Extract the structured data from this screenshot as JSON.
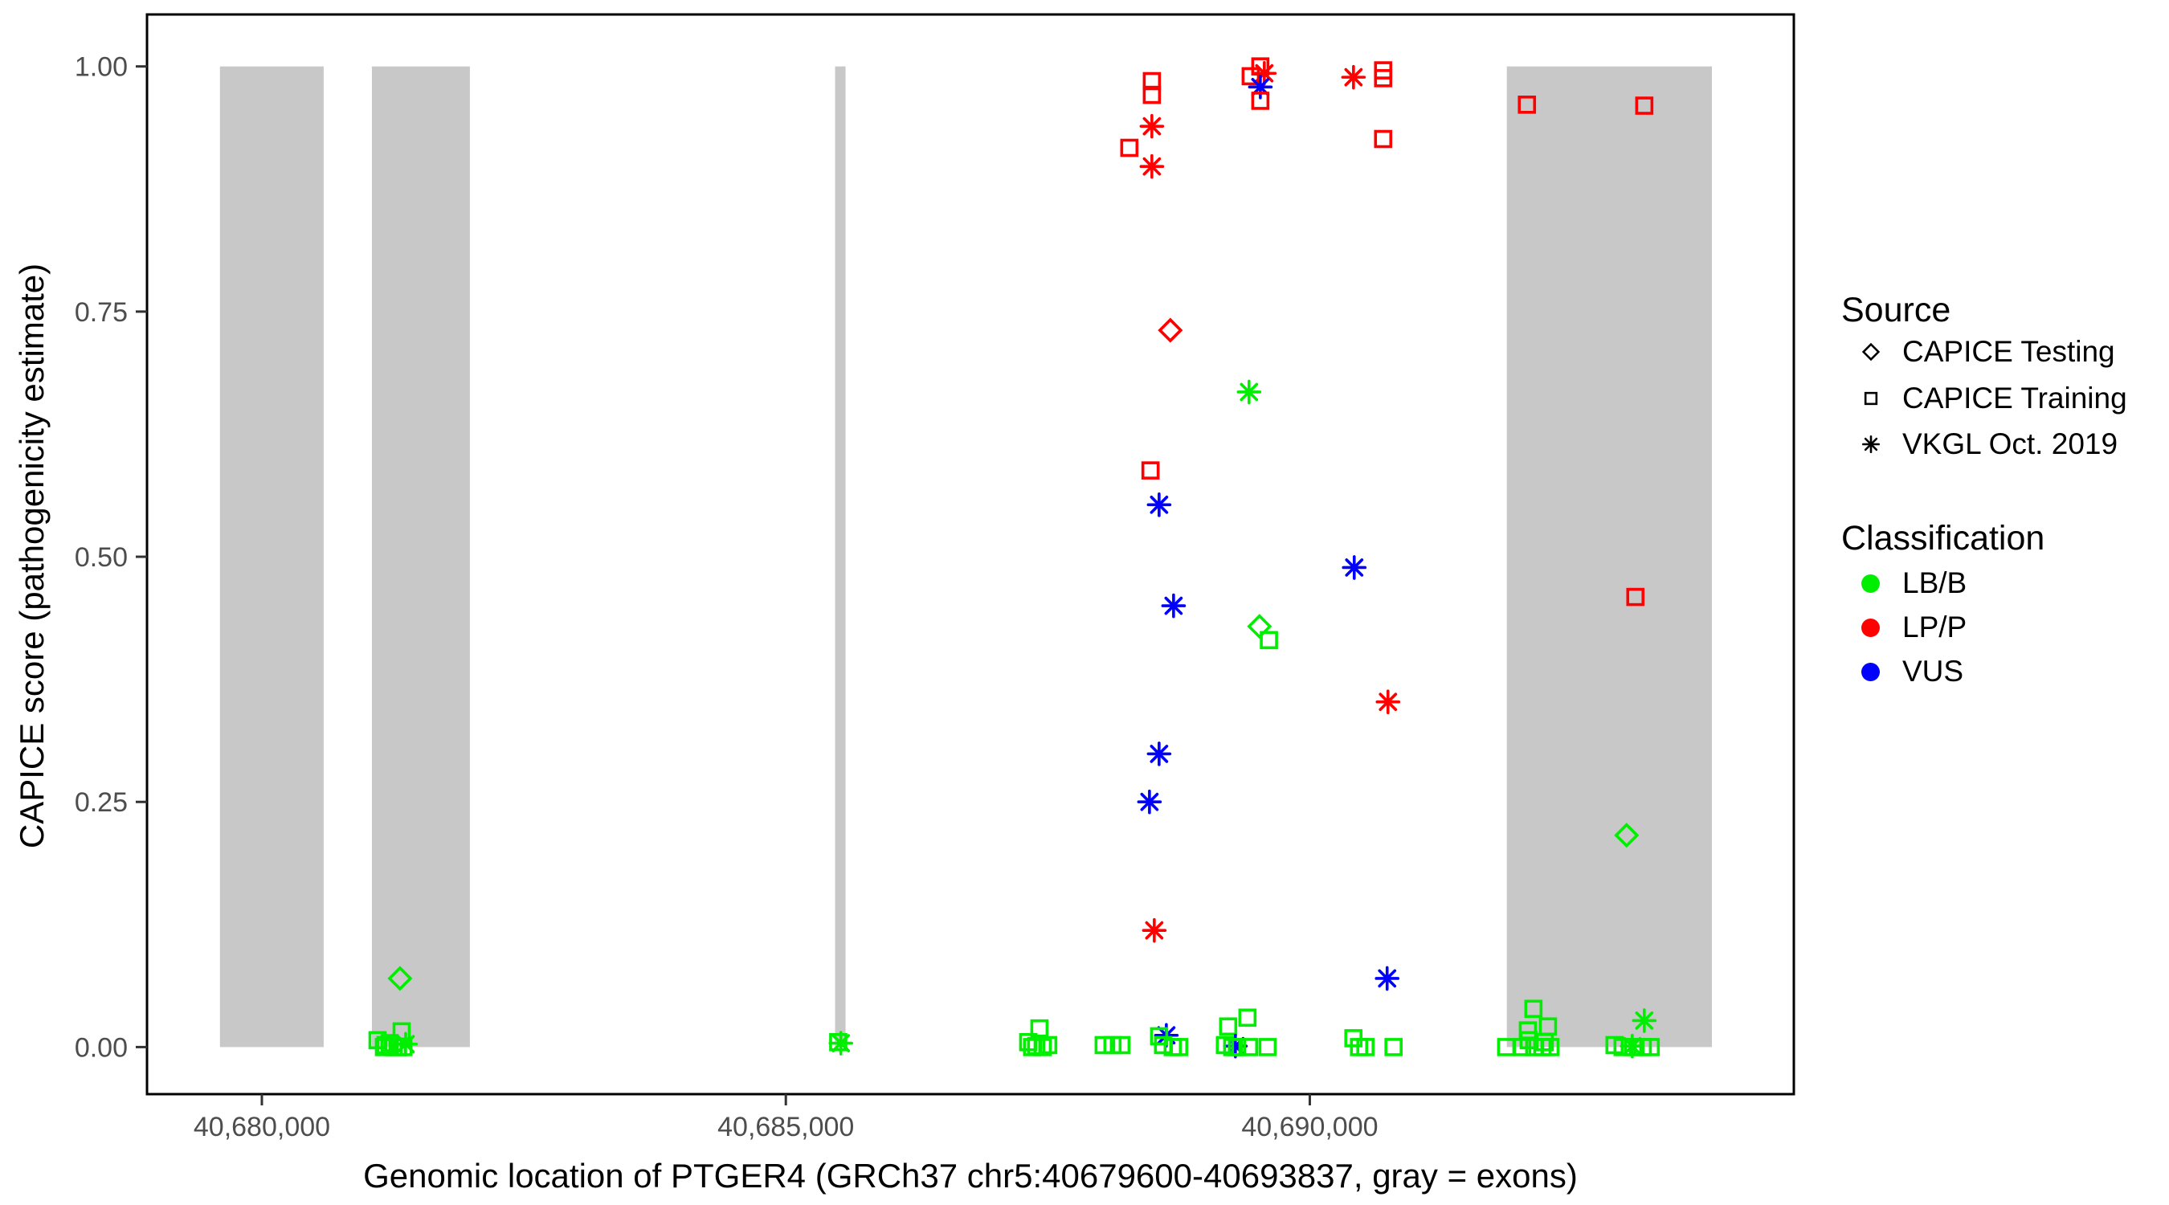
{
  "chart_data": {
    "type": "scatter",
    "title": "",
    "xlabel": "Genomic location of PTGER4 (GRCh37 chr5:40679600-40693837, gray = exons)",
    "ylabel": "CAPICE score (pathogenicity estimate)",
    "gene": "PTGER4",
    "genome_build": "GRCh37",
    "chromosome_region": "chr5:40679600-40693837",
    "x_ticks": [
      {
        "value": 40680000,
        "label": "40,680,000"
      },
      {
        "value": 40685000,
        "label": "40,685,000"
      },
      {
        "value": 40690000,
        "label": "40,690,000"
      }
    ],
    "y_ticks": [
      {
        "value": 0.0,
        "label": "0.00"
      },
      {
        "value": 0.25,
        "label": "0.25"
      },
      {
        "value": 0.5,
        "label": "0.50"
      },
      {
        "value": 0.75,
        "label": "0.75"
      },
      {
        "value": 1.0,
        "label": "1.00"
      }
    ],
    "x_axis_range": [
      40678904,
      40694619
    ],
    "y_axis_range": [
      -0.048,
      1.053
    ],
    "grid": false,
    "legend_position": "right",
    "exon_color": "#C8C8C8",
    "exons": [
      [
        40679600,
        40680590
      ],
      [
        40681050,
        40681985
      ],
      [
        40685470,
        40685570
      ],
      [
        40691880,
        40693837
      ]
    ],
    "source_keys": {
      "testing": "CAPICE Testing",
      "training": "CAPICE Training",
      "vkgl": "VKGL Oct. 2019"
    },
    "source_shapes": {
      "testing": "diamond",
      "training": "square",
      "vkgl": "asterisk"
    },
    "classification_colors": {
      "LB/B": "#00EE00",
      "LP/P": "#FF0000",
      "VUS": "#0000FF"
    },
    "point_format": [
      "genomic_position",
      "capice_score",
      "source_key",
      "classification"
    ],
    "points": [
      [
        40681318,
        0.07,
        "testing",
        "LB/B"
      ],
      [
        40681334,
        0.016,
        "training",
        "LB/B"
      ],
      [
        40681104,
        0.007,
        "training",
        "LB/B"
      ],
      [
        40681180,
        0.002,
        "training",
        "LB/B"
      ],
      [
        40681257,
        0.0,
        "training",
        "LB/B"
      ],
      [
        40681165,
        0.0,
        "training",
        "LB/B"
      ],
      [
        40681295,
        0.0,
        "training",
        "LB/B"
      ],
      [
        40681372,
        0.003,
        "vkgl",
        "LB/B"
      ],
      [
        40681220,
        0.004,
        "training",
        "LB/B"
      ],
      [
        40681350,
        0.0,
        "training",
        "LB/B"
      ],
      [
        40685500,
        0.005,
        "training",
        "LB/B"
      ],
      [
        40685525,
        0.004,
        "vkgl",
        "LB/B"
      ],
      [
        40687420,
        0.019,
        "training",
        "LB/B"
      ],
      [
        40687313,
        0.005,
        "training",
        "LB/B"
      ],
      [
        40687389,
        0.001,
        "training",
        "LB/B"
      ],
      [
        40687451,
        0.0,
        "training",
        "LB/B"
      ],
      [
        40687504,
        0.002,
        "training",
        "LB/B"
      ],
      [
        40687350,
        0.0,
        "training",
        "LB/B"
      ],
      [
        40688033,
        0.002,
        "training",
        "LB/B"
      ],
      [
        40688117,
        0.002,
        "training",
        "LB/B"
      ],
      [
        40688202,
        0.002,
        "training",
        "LB/B"
      ],
      [
        40688493,
        0.985,
        "training",
        "LP/P"
      ],
      [
        40688493,
        0.971,
        "training",
        "LP/P"
      ],
      [
        40688493,
        0.939,
        "vkgl",
        "LP/P"
      ],
      [
        40688278,
        0.917,
        "training",
        "LP/P"
      ],
      [
        40688493,
        0.898,
        "vkgl",
        "LP/P"
      ],
      [
        40688669,
        0.731,
        "testing",
        "LP/P"
      ],
      [
        40688480,
        0.588,
        "training",
        "LP/P"
      ],
      [
        40688562,
        0.553,
        "vkgl",
        "VUS"
      ],
      [
        40688700,
        0.45,
        "vkgl",
        "VUS"
      ],
      [
        40688562,
        0.299,
        "vkgl",
        "VUS"
      ],
      [
        40688470,
        0.25,
        "vkgl",
        "VUS"
      ],
      [
        40688516,
        0.119,
        "vkgl",
        "LP/P"
      ],
      [
        40688631,
        0.012,
        "vkgl",
        "VUS"
      ],
      [
        40688562,
        0.011,
        "training",
        "LB/B"
      ],
      [
        40688600,
        0.002,
        "training",
        "LB/B"
      ],
      [
        40688692,
        0.0,
        "training",
        "LB/B"
      ],
      [
        40688753,
        0.0,
        "training",
        "LB/B"
      ],
      [
        40689528,
        1.0,
        "training",
        "LP/P"
      ],
      [
        40689436,
        0.99,
        "training",
        "LP/P"
      ],
      [
        40689566,
        0.993,
        "vkgl",
        "LP/P"
      ],
      [
        40689528,
        0.979,
        "vkgl",
        "VUS"
      ],
      [
        40689528,
        0.965,
        "training",
        "LP/P"
      ],
      [
        40689420,
        0.668,
        "vkgl",
        "LB/B"
      ],
      [
        40689520,
        0.429,
        "testing",
        "LB/B"
      ],
      [
        40689610,
        0.415,
        "training",
        "LB/B"
      ],
      [
        40689221,
        0.021,
        "training",
        "LB/B"
      ],
      [
        40689405,
        0.03,
        "training",
        "LB/B"
      ],
      [
        40689290,
        0.001,
        "vkgl",
        "VUS"
      ],
      [
        40689190,
        0.002,
        "training",
        "LB/B"
      ],
      [
        40689305,
        0.0,
        "training",
        "LB/B"
      ],
      [
        40689420,
        0.0,
        "training",
        "LB/B"
      ],
      [
        40689597,
        0.0,
        "training",
        "LB/B"
      ],
      [
        40689260,
        0.0,
        "training",
        "LB/B"
      ],
      [
        40690417,
        0.989,
        "vkgl",
        "LP/P"
      ],
      [
        40690700,
        0.996,
        "training",
        "LP/P"
      ],
      [
        40690700,
        0.988,
        "training",
        "LP/P"
      ],
      [
        40690700,
        0.926,
        "training",
        "LP/P"
      ],
      [
        40690424,
        0.489,
        "vkgl",
        "VUS"
      ],
      [
        40690746,
        0.352,
        "vkgl",
        "LP/P"
      ],
      [
        40690738,
        0.07,
        "vkgl",
        "VUS"
      ],
      [
        40690416,
        0.009,
        "training",
        "LB/B"
      ],
      [
        40690470,
        0.0,
        "training",
        "LB/B"
      ],
      [
        40690531,
        0.0,
        "training",
        "LB/B"
      ],
      [
        40690799,
        0.0,
        "training",
        "LB/B"
      ],
      [
        40692072,
        0.961,
        "training",
        "LP/P"
      ],
      [
        40693192,
        0.96,
        "training",
        "LP/P"
      ],
      [
        40693107,
        0.459,
        "training",
        "LP/P"
      ],
      [
        40693023,
        0.216,
        "testing",
        "LB/B"
      ],
      [
        40692134,
        0.039,
        "training",
        "LB/B"
      ],
      [
        40692081,
        0.017,
        "training",
        "LB/B"
      ],
      [
        40692273,
        0.021,
        "training",
        "LB/B"
      ],
      [
        40692089,
        0.007,
        "training",
        "LB/B"
      ],
      [
        40692242,
        0.005,
        "training",
        "LB/B"
      ],
      [
        40692027,
        0.0,
        "training",
        "LB/B"
      ],
      [
        40692142,
        0.0,
        "training",
        "LB/B"
      ],
      [
        40692219,
        0.0,
        "training",
        "LB/B"
      ],
      [
        40692296,
        0.0,
        "training",
        "LB/B"
      ],
      [
        40691874,
        0.0,
        "training",
        "LB/B"
      ],
      [
        40693192,
        0.027,
        "vkgl",
        "LB/B"
      ],
      [
        40692908,
        0.002,
        "training",
        "LB/B"
      ],
      [
        40692985,
        0.0,
        "training",
        "LB/B"
      ],
      [
        40693085,
        0.0,
        "training",
        "LB/B"
      ],
      [
        40693177,
        0.0,
        "training",
        "LB/B"
      ],
      [
        40693253,
        0.0,
        "training",
        "LB/B"
      ],
      [
        40693077,
        0.001,
        "vkgl",
        "LB/B"
      ]
    ]
  },
  "legend": {
    "source": {
      "title": "Source",
      "items": [
        {
          "label": "CAPICE Testing",
          "shape": "diamond"
        },
        {
          "label": "CAPICE Training",
          "shape": "square"
        },
        {
          "label": "VKGL Oct. 2019",
          "shape": "asterisk"
        }
      ]
    },
    "classification": {
      "title": "Classification",
      "items": [
        {
          "label": "LB/B",
          "color": "#00EE00"
        },
        {
          "label": "LP/P",
          "color": "#FF0000"
        },
        {
          "label": "VUS",
          "color": "#0000FF"
        }
      ]
    }
  }
}
